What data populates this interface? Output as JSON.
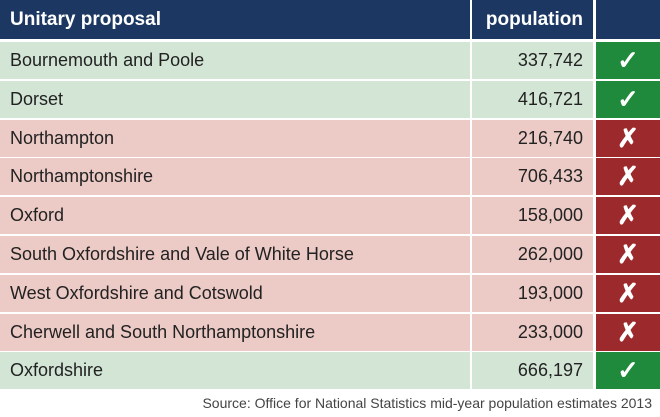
{
  "table": {
    "header": [
      "Unitary proposal",
      "population"
    ],
    "header_fill": "#1c3862",
    "rows": [
      {
        "proposal": "Bournemouth and Poole",
        "population": "337,742",
        "mark": "✓",
        "fill": "#d3e6d5",
        "mark_fill": "#1f8a3b"
      },
      {
        "proposal": "Dorset",
        "population": "416,721",
        "mark": "✓",
        "fill": "#d3e6d5",
        "mark_fill": "#1f8a3b"
      },
      {
        "proposal": "Northampton",
        "population": "216,740",
        "mark": "✗",
        "fill": "#eccac5",
        "mark_fill": "#9c2a2c"
      },
      {
        "proposal": "Northamptonshire",
        "population": "706,433",
        "mark": "✗",
        "fill": "#eccac5",
        "mark_fill": "#9c2a2c"
      },
      {
        "proposal": "Oxford",
        "population": "158,000",
        "mark": "✗",
        "fill": "#eccac5",
        "mark_fill": "#9c2a2c"
      },
      {
        "proposal": "South Oxfordshire and Vale of White Horse",
        "population": "262,000",
        "mark": "✗",
        "fill": "#eccac5",
        "mark_fill": "#9c2a2c"
      },
      {
        "proposal": "West Oxfordshire and Cotswold",
        "population": "193,000",
        "mark": "✗",
        "fill": "#eccac5",
        "mark_fill": "#9c2a2c"
      },
      {
        "proposal": "Cherwell and South Northamptonshire",
        "population": "233,000",
        "mark": "✗",
        "fill": "#eccac5",
        "mark_fill": "#9c2a2c"
      },
      {
        "proposal": "Oxfordshire",
        "population": "666,197",
        "mark": "✓",
        "fill": "#d3e6d5",
        "mark_fill": "#1f8a3b"
      }
    ]
  },
  "source": "Source: Office for National Statistics mid-year population estimates 2013"
}
